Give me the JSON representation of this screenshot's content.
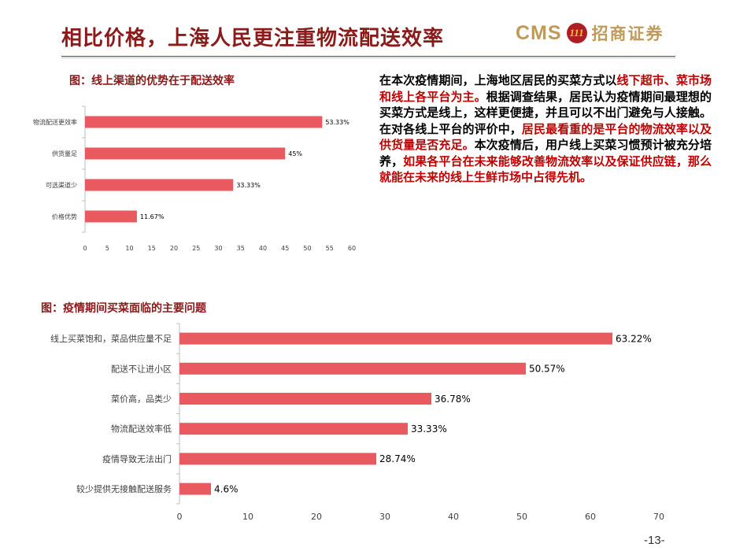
{
  "header": {
    "title": "相比价格，上海人民更注重物流配送效率",
    "logo_text": "CMS",
    "logo_mark": "111",
    "logo_cn": "招商证券"
  },
  "colors": {
    "accent": "#8b1a1a",
    "bar": "#e85a5f",
    "highlight": "#c00000"
  },
  "paragraph": [
    {
      "text": "在本次疫情期间，上海地区居民的买菜方式以",
      "red": false
    },
    {
      "text": "线下超市、菜市场和线上各平台为主。",
      "red": true
    },
    {
      "text": "根据调查结果，居民认为疫情期间最理想的买菜方式是线上，这样更便捷，并且可以不出门避免与人接触。在对各线上平台的评价中，",
      "red": false
    },
    {
      "text": "居民最看重的是平台的物流效率以及供货量是否充足。",
      "red": true
    },
    {
      "text": "本次疫情后，用户线上买菜习惯预计被充分培养，",
      "red": false
    },
    {
      "text": "如果各平台在未来能够改善物流效率以及保证供应链，那么就能在未来的线上生鲜市场中占得先机。",
      "red": true
    }
  ],
  "chart_data": [
    {
      "type": "bar",
      "orientation": "horizontal",
      "caption": "图：线上渠道的优势在于配送效率",
      "categories": [
        "物流配送更效率",
        "供货量足",
        "可选渠道少",
        "价格优势"
      ],
      "values": [
        53.33,
        45,
        33.33,
        11.67
      ],
      "value_labels": [
        "53.33%",
        "45%",
        "33.33%",
        "11.67%"
      ],
      "xlim": [
        0,
        60
      ],
      "xticks": [
        "0",
        "5",
        "10",
        "15",
        "20",
        "25",
        "30",
        "35",
        "40",
        "45",
        "50",
        "55",
        "60"
      ],
      "grid": false
    },
    {
      "type": "bar",
      "orientation": "horizontal",
      "caption": "图：疫情期间买菜面临的主要问题",
      "categories": [
        "线上买菜饱和，菜品供应量不足",
        "配送不让进小区",
        "菜价高，品类少",
        "物流配送效率低",
        "疫情导致无法出门",
        "较少提供无接触配送服务"
      ],
      "values": [
        63.22,
        50.57,
        36.78,
        33.33,
        28.74,
        4.6
      ],
      "value_labels": [
        "63.22%",
        "50.57%",
        "36.78%",
        "33.33%",
        "28.74%",
        "4.6%"
      ],
      "xlim": [
        0,
        70
      ],
      "xticks": [
        "0",
        "10",
        "20",
        "30",
        "40",
        "50",
        "60",
        "70"
      ],
      "grid": false
    }
  ],
  "footer": {
    "page": "-13-"
  }
}
